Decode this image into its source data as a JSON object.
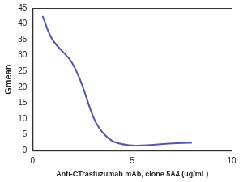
{
  "chart_data": {
    "type": "line",
    "x_label": "Anti-CTrastuzumab mAb, clone 5A4 (ug/mL)",
    "y_label": "Gmean",
    "x": [
      0.5,
      1,
      2,
      4,
      8
    ],
    "values": [
      42.5,
      35,
      27.5,
      3,
      2.5
    ],
    "color": "#5656a8",
    "marker": "none",
    "xlim": [
      0,
      10
    ],
    "xticks": [
      0,
      5,
      10
    ],
    "ylim": [
      0,
      45
    ],
    "yticks": [
      0,
      5,
      10,
      15,
      20,
      25,
      30,
      35,
      40,
      45
    ],
    "grid": false
  }
}
